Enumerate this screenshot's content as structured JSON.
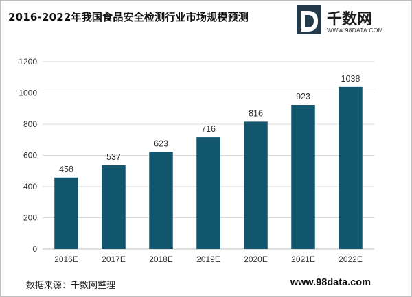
{
  "title": "2016-2022年我国食品安全检测行业市场规模预测",
  "logo": {
    "name": "千数网",
    "url": "WWW.98DATA.COM",
    "mark_letter": "D",
    "mark_superscript": "3",
    "colors": {
      "dark": "#233b4b",
      "light": "#ffffff"
    }
  },
  "source": "数据来源：千数网整理",
  "website": "www.98data.com",
  "colors": {
    "bar": "#12566e",
    "gridline": "#d9d9d9",
    "axis": "#bfbfbf"
  },
  "chart_data": {
    "type": "bar",
    "title": "2016-2022年我国食品安全检测行业市场规模预测",
    "categories": [
      "2016E",
      "2017E",
      "2018E",
      "2019E",
      "2020E",
      "2021E",
      "2022E"
    ],
    "values": [
      458,
      537,
      623,
      716,
      816,
      923,
      1038
    ],
    "ylim": [
      0,
      1200
    ],
    "yticks": [
      0,
      200,
      400,
      600,
      800,
      1000,
      1200
    ],
    "grid": true,
    "data_labels": true,
    "xlabel": "",
    "ylabel": ""
  }
}
